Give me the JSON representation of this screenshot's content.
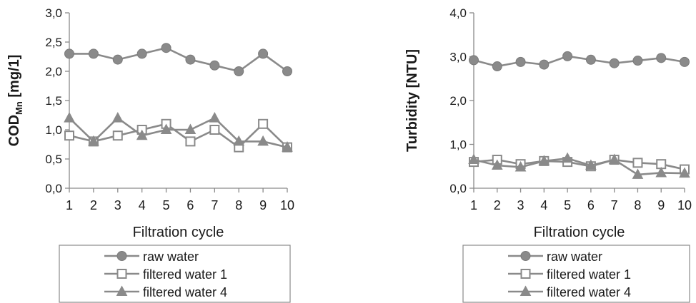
{
  "chart_data": [
    {
      "type": "line",
      "ylabel_main": "COD",
      "ylabel_sub": "Mn",
      "ylabel_unit": " [mg/1]",
      "xlabel": "Filtration cycle",
      "x": [
        "1",
        "2",
        "3",
        "4",
        "5",
        "6",
        "7",
        "8",
        "9",
        "10"
      ],
      "ylim": [
        0,
        3.0
      ],
      "y_ticks": [
        "0,0",
        "0,5",
        "1,0",
        "1,5",
        "2,0",
        "2,5",
        "3,0"
      ],
      "grid": false,
      "legend_position": "bottom",
      "series": [
        {
          "name": "raw water",
          "marker": "circle",
          "values": [
            2.3,
            2.3,
            2.2,
            2.3,
            2.4,
            2.2,
            2.1,
            2.0,
            2.3,
            2.0
          ]
        },
        {
          "name": "filtered water 1",
          "marker": "square",
          "values": [
            0.9,
            0.8,
            0.9,
            1.0,
            1.1,
            0.8,
            1.0,
            0.7,
            1.1,
            0.7
          ]
        },
        {
          "name": "filtered water 4",
          "marker": "triangle",
          "values": [
            1.2,
            0.8,
            1.2,
            0.9,
            1.0,
            1.0,
            1.2,
            0.8,
            0.8,
            0.7
          ]
        }
      ]
    },
    {
      "type": "line",
      "ylabel_main": "Turbidity [NTU]",
      "ylabel_sub": "",
      "ylabel_unit": "",
      "xlabel": "Filtration cycle",
      "x": [
        "1",
        "2",
        "3",
        "4",
        "5",
        "6",
        "7",
        "8",
        "9",
        "10"
      ],
      "ylim": [
        0,
        4.0
      ],
      "y_ticks": [
        "0,0",
        "1,0",
        "2,0",
        "3,0",
        "4,0"
      ],
      "grid": false,
      "legend_position": "bottom",
      "series": [
        {
          "name": "raw water",
          "marker": "circle",
          "values": [
            2.92,
            2.78,
            2.88,
            2.82,
            3.01,
            2.93,
            2.85,
            2.91,
            2.97,
            2.88
          ]
        },
        {
          "name": "filtered water 1",
          "marker": "square",
          "values": [
            0.6,
            0.65,
            0.55,
            0.62,
            0.6,
            0.5,
            0.65,
            0.58,
            0.55,
            0.43
          ]
        },
        {
          "name": "filtered water 4",
          "marker": "triangle",
          "values": [
            0.65,
            0.52,
            0.48,
            0.62,
            0.68,
            0.52,
            0.65,
            0.31,
            0.35,
            0.34
          ]
        }
      ]
    }
  ],
  "colors": {
    "raw": "#8a8a8a",
    "filtered": "#8a8a8a",
    "axis": "#8a8a8a",
    "text": "#1a1a1a"
  }
}
